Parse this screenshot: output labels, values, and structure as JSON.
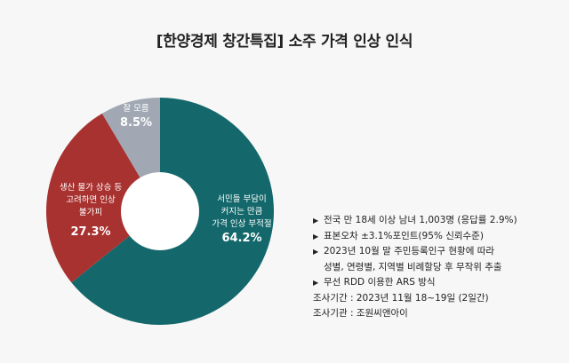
{
  "title": "[한양경제 창간특집] 소주 가격 인상 인식",
  "chart_data": {
    "type": "pie",
    "title": "[한양경제 창간특집] 소주 가격 인상 인식",
    "slices": [
      {
        "label": "서민들 부담이 커지는 만큼 가격 인상 부적절",
        "label_lines": [
          "서민들 부담이",
          "커지는 만큼",
          "가격 인상 부적절"
        ],
        "value": 64.2,
        "value_text": "64.2%",
        "color": "#14686b"
      },
      {
        "label": "생산 물가 상승 등 고려하면 인상 불가피",
        "label_lines": [
          "생산 물가 상승 등",
          "고려하면 인상",
          "불가피"
        ],
        "value": 27.3,
        "value_text": "27.3%",
        "color": "#a8322f"
      },
      {
        "label": "잘 모름",
        "label_lines": [
          "잘 모름"
        ],
        "value": 8.5,
        "value_text": "8.5%",
        "color": "#a1a8b4"
      }
    ]
  },
  "notes": {
    "bullets": [
      "전국 만 18세 이상 남녀 1,003명 (응답률 2.9%)",
      "표본오차 ±3.1%포인트(95% 신뢰수준)",
      "2023년 10월 말 주민등록인구 현황에 따라"
    ],
    "continuation": "성별, 연령별, 지역별 비례할당 후 무작위 추출",
    "bullet_last": "무선 RDD 이용한 ARS 방식",
    "survey_period": "조사기간 : 2023년 11월 18~19일 (2일간)",
    "survey_org": "조사기관 : 조원씨앤아이",
    "bullet_icon": "right-triangle-icon"
  }
}
